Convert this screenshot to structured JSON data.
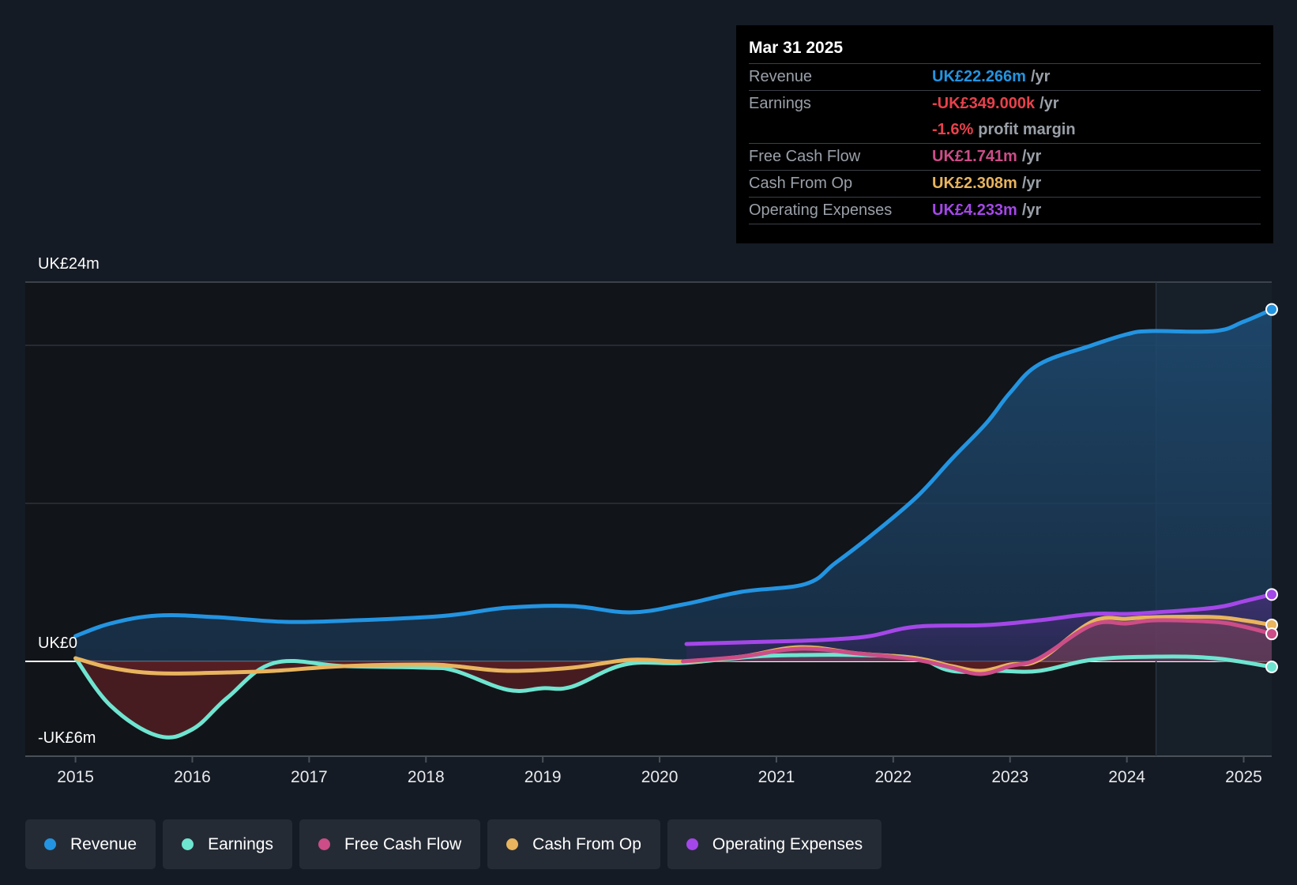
{
  "chart_data": {
    "type": "line",
    "title": "",
    "y_axis": {
      "top_label": "UK£24m",
      "zero_label": "UK£0",
      "bottom_label": "-UK£6m",
      "ylim": [
        -6,
        24
      ]
    },
    "x_ticks": [
      "2015",
      "2016",
      "2017",
      "2018",
      "2019",
      "2020",
      "2021",
      "2022",
      "2023",
      "2024",
      "2025"
    ],
    "xlim": [
      2014.57,
      2025.24
    ],
    "forecast_start": 2024.25,
    "series": [
      {
        "name": "Revenue",
        "color": "#2394e1",
        "fill": true,
        "x": [
          2015.0,
          2015.3,
          2015.7,
          2016.2,
          2016.8,
          2017.4,
          2018.0,
          2018.3,
          2018.7,
          2019.25,
          2019.75,
          2020.2,
          2020.7,
          2021.25,
          2021.5,
          2021.8,
          2022.2,
          2022.5,
          2022.8,
          2023.0,
          2023.25,
          2023.7,
          2024.0,
          2024.2,
          2024.75,
          2025.0,
          2025.24
        ],
        "y": [
          1.6,
          2.4,
          2.9,
          2.8,
          2.5,
          2.6,
          2.8,
          3.0,
          3.4,
          3.5,
          3.1,
          3.6,
          4.4,
          4.9,
          6.2,
          7.9,
          10.4,
          12.8,
          15.1,
          17.0,
          18.8,
          20.0,
          20.7,
          20.9,
          20.9,
          21.5,
          22.266
        ]
      },
      {
        "name": "Earnings",
        "color": "#6ee5d0",
        "fill": false,
        "x": [
          2015.0,
          2015.3,
          2015.7,
          2016.0,
          2016.3,
          2016.7,
          2017.3,
          2018.0,
          2018.25,
          2018.7,
          2019.0,
          2019.25,
          2019.7,
          2020.2,
          2020.8,
          2021.2,
          2021.7,
          2022.2,
          2022.5,
          2022.9,
          2023.25,
          2023.7,
          2024.25,
          2024.75,
          2025.24
        ],
        "y": [
          0.2,
          -2.8,
          -4.7,
          -4.3,
          -2.3,
          -0.1,
          -0.3,
          -0.4,
          -0.6,
          -1.8,
          -1.7,
          -1.6,
          -0.2,
          -0.1,
          0.3,
          0.4,
          0.4,
          0.2,
          -0.6,
          -0.6,
          -0.6,
          0.1,
          0.3,
          0.2,
          -0.349
        ]
      },
      {
        "name": "Free Cash Flow",
        "color": "#cc4d87",
        "fill": false,
        "x": [
          2020.2,
          2020.7,
          2021.2,
          2021.7,
          2022.2,
          2022.5,
          2022.75,
          2023.0,
          2023.25,
          2023.7,
          2024.0,
          2024.25,
          2024.75,
          2025.0,
          2025.24
        ],
        "y": [
          0.0,
          0.3,
          0.8,
          0.5,
          0.1,
          -0.4,
          -0.8,
          -0.3,
          0.2,
          2.3,
          2.4,
          2.6,
          2.5,
          2.2,
          1.741
        ]
      },
      {
        "name": "Cash From Op",
        "color": "#e8b45e",
        "fill": false,
        "x": [
          2015.0,
          2015.3,
          2015.7,
          2016.3,
          2016.7,
          2017.3,
          2018.0,
          2018.25,
          2018.7,
          2019.25,
          2019.75,
          2020.2,
          2020.7,
          2021.2,
          2021.7,
          2022.2,
          2022.5,
          2022.75,
          2023.0,
          2023.25,
          2023.7,
          2024.0,
          2024.25,
          2024.75,
          2025.0,
          2025.24
        ],
        "y": [
          0.2,
          -0.4,
          -0.75,
          -0.7,
          -0.6,
          -0.3,
          -0.2,
          -0.3,
          -0.6,
          -0.4,
          0.1,
          0.0,
          0.3,
          0.9,
          0.5,
          0.2,
          -0.3,
          -0.6,
          -0.2,
          0.1,
          2.5,
          2.7,
          2.8,
          2.8,
          2.6,
          2.308
        ]
      },
      {
        "name": "Operating Expenses",
        "color": "#a447e8",
        "fill": true,
        "x": [
          2020.23,
          2020.7,
          2021.2,
          2021.5,
          2021.8,
          2022.2,
          2022.8,
          2023.25,
          2023.7,
          2024.0,
          2024.25,
          2024.75,
          2025.0,
          2025.24
        ],
        "y": [
          1.1,
          1.2,
          1.3,
          1.4,
          1.6,
          2.2,
          2.3,
          2.6,
          3.0,
          3.0,
          3.1,
          3.4,
          3.8,
          4.233
        ]
      }
    ]
  },
  "tooltip": {
    "date": "Mar 31 2025",
    "rows": [
      {
        "label": "Revenue",
        "value": "UK£22.266m",
        "unit": "/yr",
        "color": "#2394e1"
      },
      {
        "label": "Earnings",
        "value": "-UK£349.000k",
        "unit": "/yr",
        "color": "#e8414b"
      },
      {
        "label": "",
        "value": "-1.6%",
        "unit": "profit margin",
        "color": "#e8414b"
      },
      {
        "label": "Free Cash Flow",
        "value": "UK£1.741m",
        "unit": "/yr",
        "color": "#cc4d87"
      },
      {
        "label": "Cash From Op",
        "value": "UK£2.308m",
        "unit": "/yr",
        "color": "#e8b45e"
      },
      {
        "label": "Operating Expenses",
        "value": "UK£4.233m",
        "unit": "/yr",
        "color": "#a447e8"
      }
    ]
  },
  "legend": [
    {
      "label": "Revenue",
      "color": "#2394e1"
    },
    {
      "label": "Earnings",
      "color": "#6ee5d0"
    },
    {
      "label": "Free Cash Flow",
      "color": "#cc4d87"
    },
    {
      "label": "Cash From Op",
      "color": "#e8b45e"
    },
    {
      "label": "Operating Expenses",
      "color": "#a447e8"
    }
  ]
}
